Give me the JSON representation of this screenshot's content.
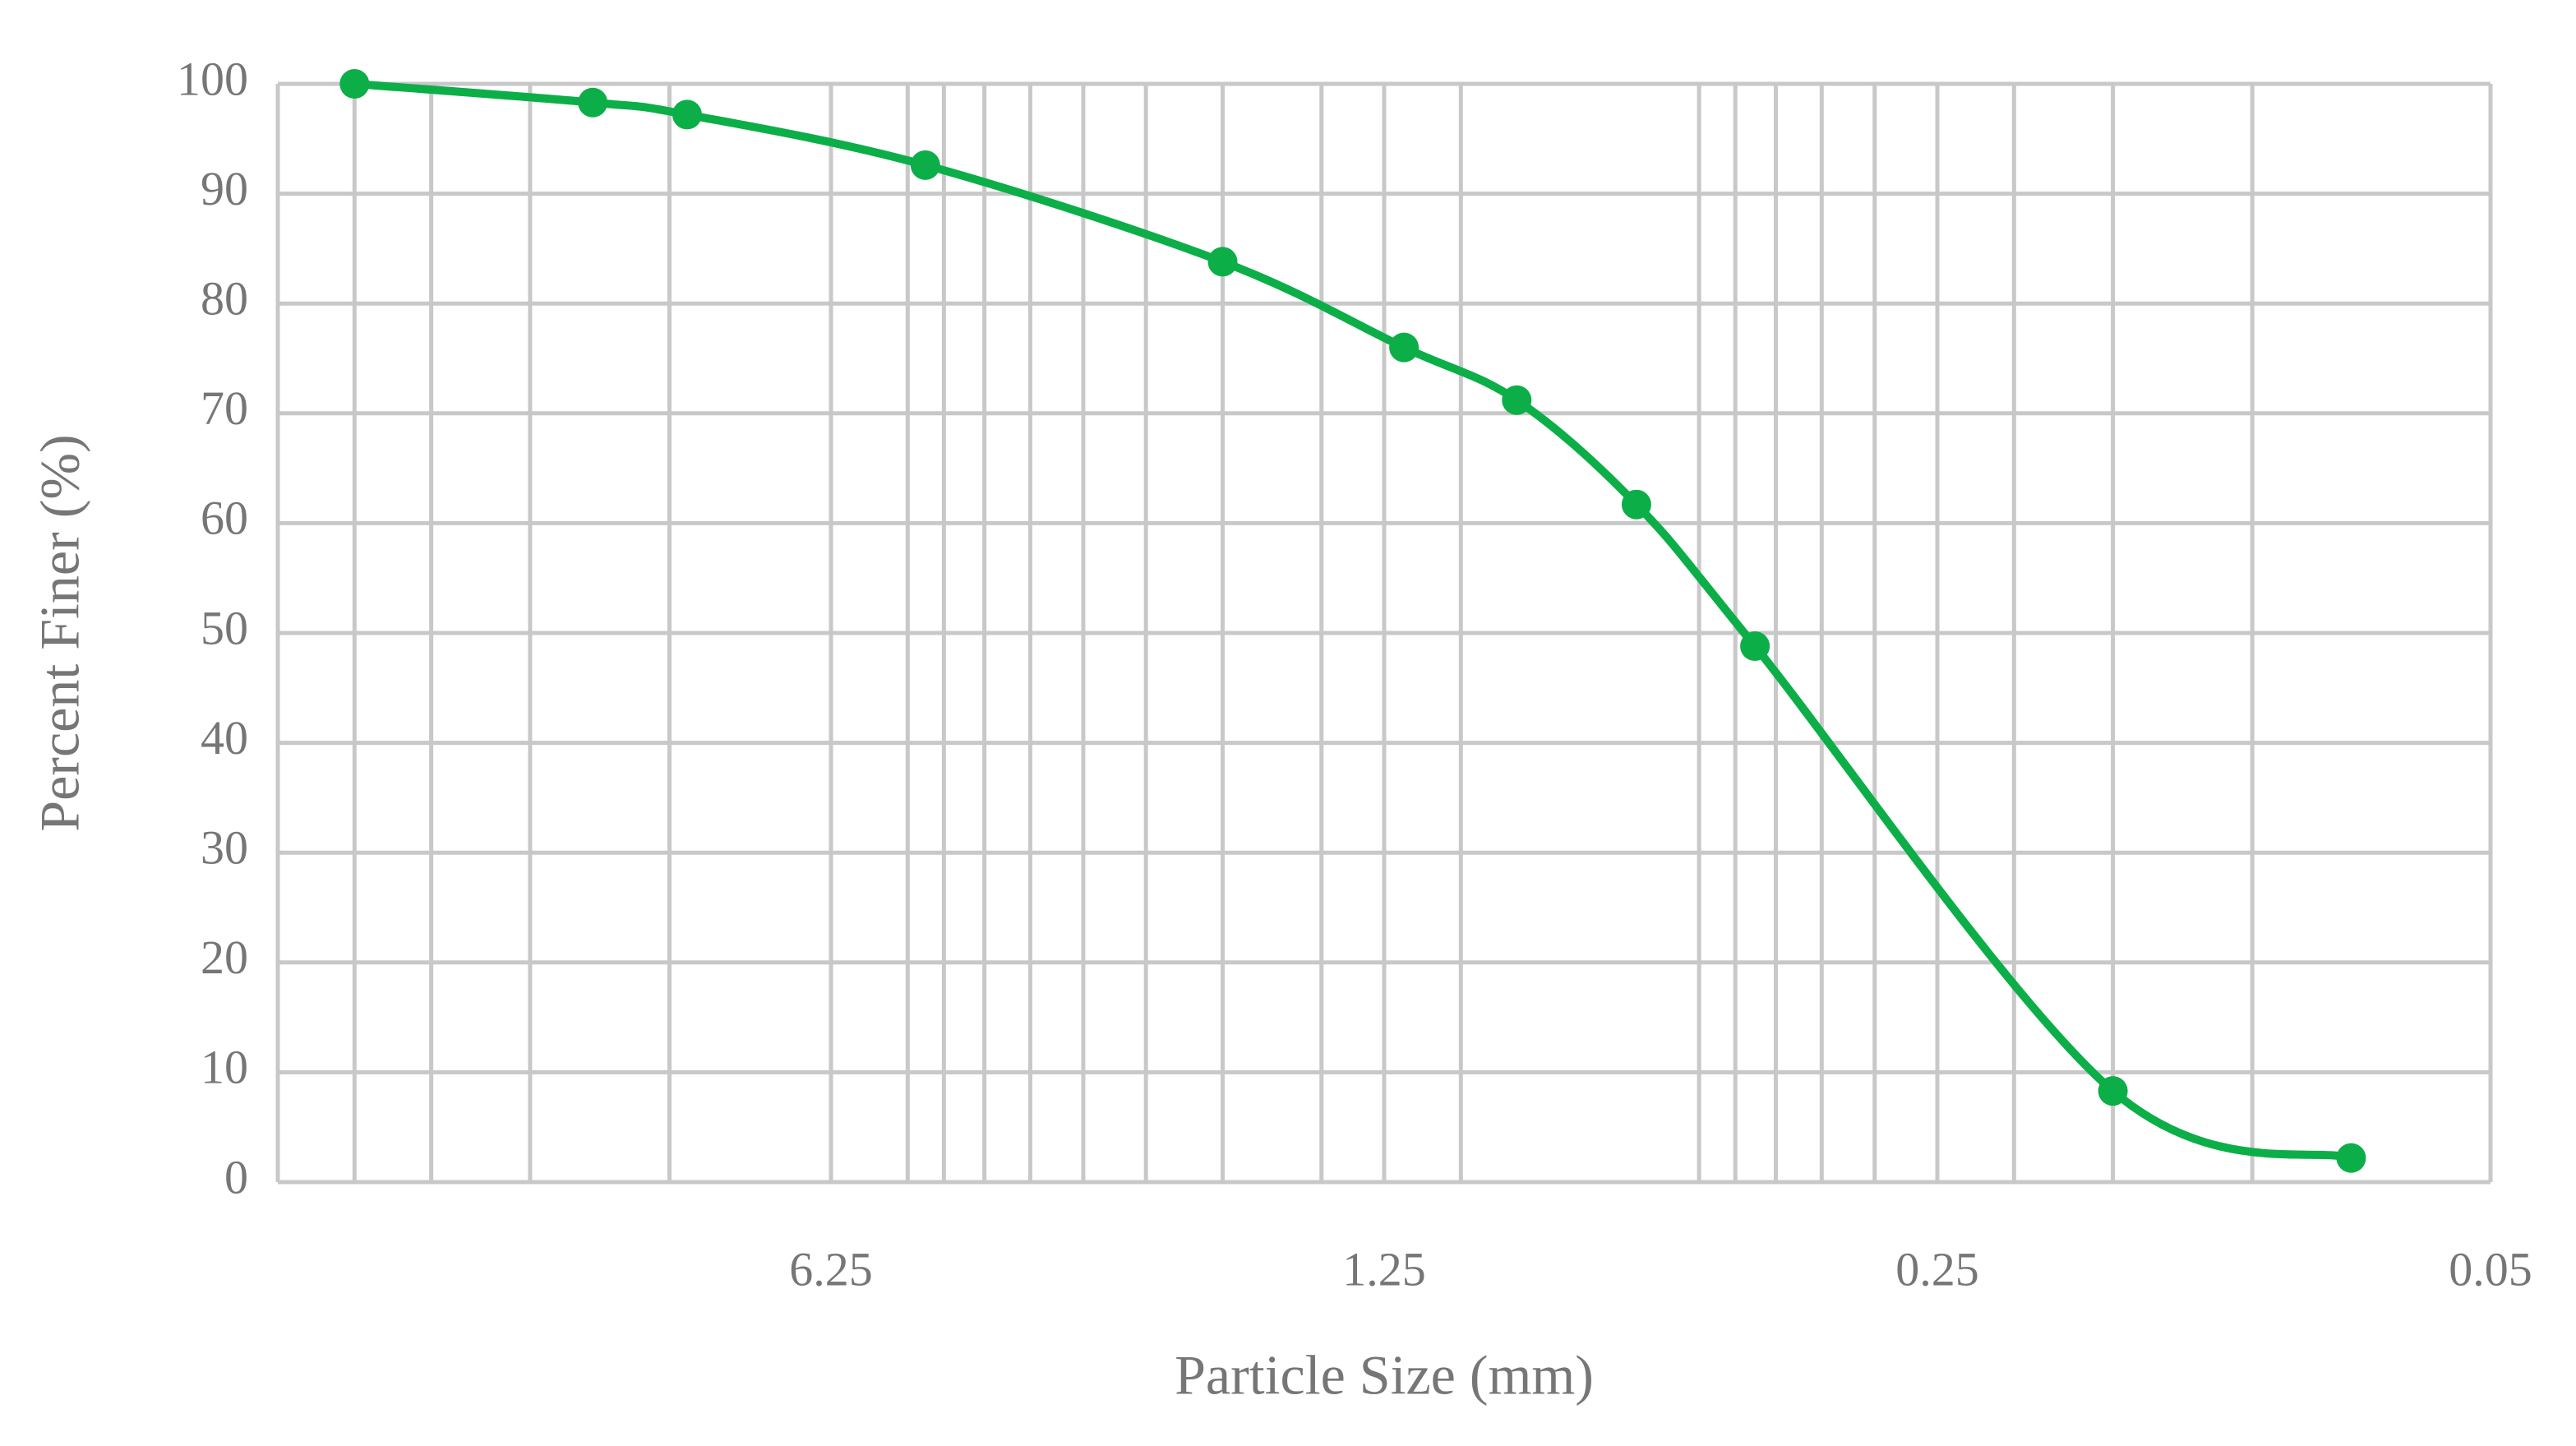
{
  "chart_data": {
    "type": "line",
    "x_label": "Particle Size (mm)",
    "y_label": "Percent Finer (%)",
    "x": [
      25,
      12.5,
      9.5,
      4.75,
      2,
      1.18,
      0.85,
      0.6,
      0.425,
      0.15,
      0.075
    ],
    "series": [
      {
        "color": "#0cae48",
        "values": [
          100,
          98.3,
          97.2,
          92.6,
          83.8,
          76.0,
          71.2,
          61.7,
          48.8,
          8.3,
          2.2
        ]
      }
    ],
    "xlim": [
      31.25,
      0.05
    ],
    "xlog": true,
    "xlog_base": 5,
    "xticks": [
      6.25,
      1.25,
      0.25,
      0.05
    ],
    "xgrid": [
      25,
      20,
      15,
      10,
      6.25,
      5,
      4.5,
      4,
      3.5,
      3,
      2.5,
      2,
      1.5,
      1.25,
      1,
      0.5,
      0.45,
      0.4,
      0.35,
      0.3,
      0.25,
      0.2,
      0.15,
      0.1,
      0.05
    ],
    "ylim": [
      0,
      100
    ],
    "yticks": [
      0,
      10,
      20,
      30,
      40,
      50,
      60,
      70,
      80,
      90,
      100
    ],
    "grid": true,
    "smooth": true
  }
}
